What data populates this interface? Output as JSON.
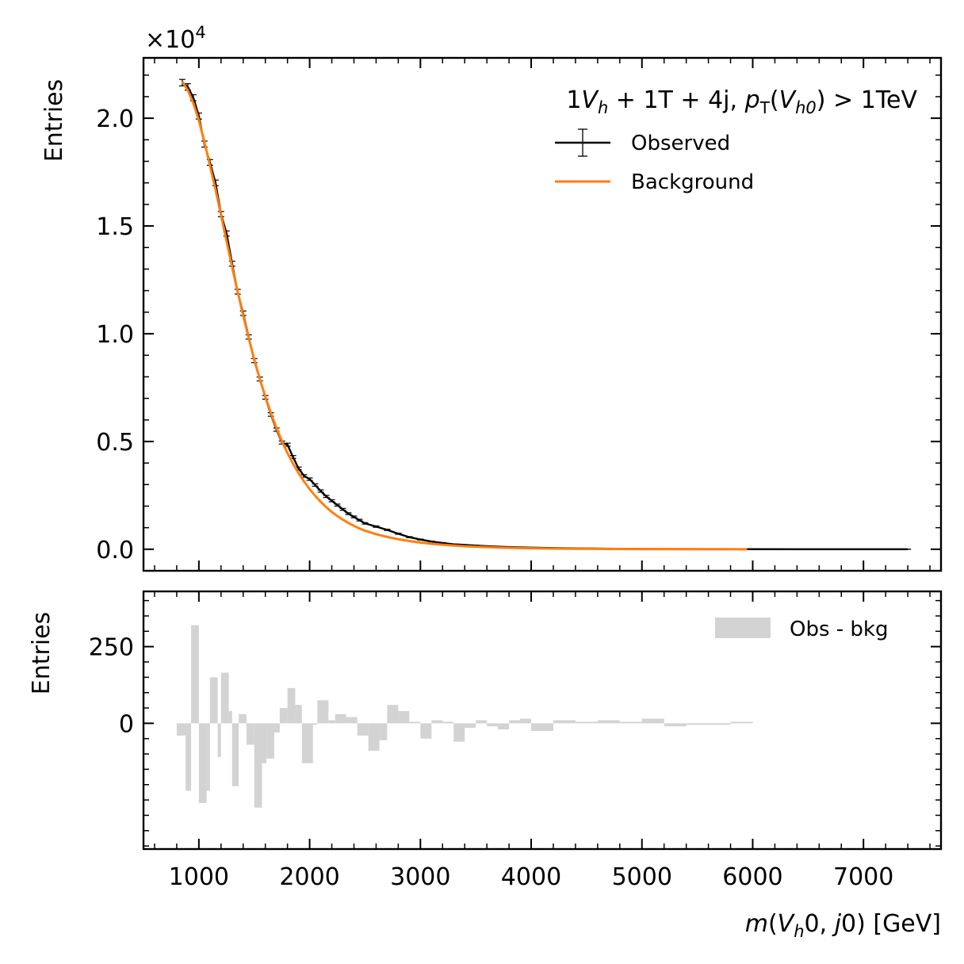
{
  "chart_data": [
    {
      "type": "line",
      "panel": "main",
      "annotation": {
        "lead": "1",
        "v": "V",
        "vsub": "h",
        "mid": " + 1T + 4j, ",
        "p": "p",
        "psub": "T",
        "paren_open": "(",
        "v2": "V",
        "v2sub": "h0",
        "tail": ") > 1TeV"
      },
      "ylabel": "Entries",
      "y_multiplier": "×10",
      "y_multiplier_exp": "4",
      "xlim": [
        500,
        7700
      ],
      "ylim": [
        -1000,
        22800
      ],
      "yticks": [
        0,
        5000,
        10000,
        15000,
        20000
      ],
      "ytick_labels": [
        "0.0",
        "0.5",
        "1.0",
        "1.5",
        "2.0"
      ],
      "xticks": [
        1000,
        2000,
        3000,
        4000,
        5000,
        6000,
        7000
      ],
      "legend_position": "upper-right",
      "series": [
        {
          "name": "Observed",
          "style": "errorbar",
          "color": "#000000",
          "x": [
            850,
            900,
            950,
            1000,
            1050,
            1100,
            1150,
            1200,
            1250,
            1300,
            1350,
            1400,
            1450,
            1500,
            1550,
            1600,
            1650,
            1700,
            1750,
            1800,
            1850,
            1900,
            1950,
            2000,
            2050,
            2100,
            2150,
            2200,
            2250,
            2300,
            2350,
            2400,
            2450,
            2500,
            2600,
            2700,
            2800,
            2900,
            3000,
            3100,
            3200,
            3300,
            3400,
            3500,
            3600,
            3700,
            3800,
            3900,
            4000,
            4200,
            4400,
            4600,
            4800,
            5000,
            5200,
            5400,
            5600,
            5800,
            6000,
            6400,
            6800,
            7200,
            7400
          ],
          "y": [
            21650,
            21450,
            20950,
            20100,
            18800,
            17950,
            17000,
            15550,
            14650,
            13250,
            11950,
            10950,
            9850,
            8750,
            7900,
            7050,
            6250,
            5550,
            4950,
            4850,
            4280,
            3750,
            3400,
            3250,
            2980,
            2700,
            2450,
            2250,
            2050,
            1850,
            1650,
            1500,
            1350,
            1200,
            1050,
            900,
            720,
            560,
            450,
            360,
            290,
            230,
            200,
            170,
            140,
            120,
            100,
            85,
            75,
            55,
            40,
            30,
            22,
            15,
            10,
            7,
            5,
            3,
            2,
            1,
            1,
            0,
            0
          ],
          "yerr": [
            150,
            150,
            140,
            140,
            140,
            130,
            130,
            120,
            120,
            115,
            110,
            105,
            100,
            95,
            90,
            85,
            80,
            75,
            70,
            70,
            65,
            62,
            58,
            57,
            55,
            52,
            50,
            48,
            45,
            43,
            41,
            39,
            37,
            35,
            33,
            30,
            27,
            24,
            21,
            19,
            17,
            15,
            14,
            13,
            12,
            11,
            10,
            9,
            9,
            7,
            6,
            5,
            5,
            4,
            3,
            3,
            2,
            2,
            1,
            1,
            1,
            1,
            1
          ]
        },
        {
          "name": "Background",
          "style": "line",
          "color": "#ff7f0e",
          "x": [
            850,
            900,
            950,
            1000,
            1050,
            1100,
            1150,
            1200,
            1250,
            1300,
            1350,
            1400,
            1450,
            1500,
            1550,
            1600,
            1650,
            1700,
            1750,
            1800,
            1850,
            1900,
            1950,
            2000,
            2050,
            2100,
            2150,
            2200,
            2250,
            2300,
            2350,
            2400,
            2450,
            2500,
            2600,
            2700,
            2800,
            2900,
            3000,
            3100,
            3200,
            3300,
            3400,
            3500,
            3600,
            3700,
            3800,
            3900,
            4000,
            4200,
            4400,
            4600,
            4800,
            5000,
            5200,
            5400,
            5600,
            5800,
            5950
          ],
          "y": [
            21700,
            21300,
            20700,
            19900,
            18900,
            17800,
            16700,
            15500,
            14300,
            13100,
            11950,
            10850,
            9800,
            8800,
            7900,
            7080,
            6320,
            5630,
            5010,
            4460,
            3970,
            3530,
            3140,
            2790,
            2480,
            2200,
            1950,
            1730,
            1540,
            1370,
            1220,
            1085,
            965,
            860,
            700,
            570,
            465,
            380,
            310,
            255,
            210,
            172,
            142,
            117,
            97,
            80,
            66,
            55,
            46,
            32,
            22,
            15,
            10,
            7,
            5,
            3,
            2,
            1,
            0
          ]
        }
      ]
    },
    {
      "type": "bar",
      "panel": "residual",
      "ylabel": "Entries",
      "xlabel_parts": {
        "m": "m",
        "open": "(",
        "v": "V",
        "vsub": "h",
        "zero": "0, ",
        "j": "j",
        "close": "0) [GeV]"
      },
      "xlim": [
        500,
        7700
      ],
      "ylim": [
        -410,
        430
      ],
      "yticks": [
        0,
        250
      ],
      "ytick_labels": [
        "0",
        "250"
      ],
      "xticks": [
        1000,
        2000,
        3000,
        4000,
        5000,
        6000,
        7000
      ],
      "xtick_labels": [
        "1000",
        "2000",
        "3000",
        "4000",
        "5000",
        "6000",
        "7000"
      ],
      "legend_position": "upper-right",
      "series": [
        {
          "name": "Obs - bkg",
          "color": "#d3d3d3",
          "bins": [
            [
              800,
              880,
              -40
            ],
            [
              880,
              930,
              -220
            ],
            [
              930,
              1000,
              320
            ],
            [
              1000,
              1070,
              -260
            ],
            [
              1070,
              1100,
              -220
            ],
            [
              1100,
              1170,
              150
            ],
            [
              1170,
              1200,
              -110
            ],
            [
              1200,
              1270,
              165
            ],
            [
              1270,
              1300,
              40
            ],
            [
              1300,
              1360,
              -205
            ],
            [
              1360,
              1430,
              30
            ],
            [
              1430,
              1500,
              -70
            ],
            [
              1500,
              1570,
              -275
            ],
            [
              1570,
              1610,
              -130
            ],
            [
              1610,
              1680,
              -115
            ],
            [
              1680,
              1730,
              -30
            ],
            [
              1730,
              1800,
              50
            ],
            [
              1800,
              1870,
              115
            ],
            [
              1870,
              1930,
              60
            ],
            [
              1930,
              2030,
              -130
            ],
            [
              2030,
              2070,
              -5
            ],
            [
              2070,
              2170,
              75
            ],
            [
              2170,
              2230,
              10
            ],
            [
              2230,
              2330,
              30
            ],
            [
              2330,
              2430,
              20
            ],
            [
              2430,
              2530,
              -40
            ],
            [
              2530,
              2630,
              -90
            ],
            [
              2630,
              2700,
              -55
            ],
            [
              2700,
              2800,
              60
            ],
            [
              2800,
              2900,
              40
            ],
            [
              2900,
              3000,
              5
            ],
            [
              3000,
              3100,
              -50
            ],
            [
              3100,
              3200,
              10
            ],
            [
              3200,
              3300,
              5
            ],
            [
              3300,
              3400,
              -60
            ],
            [
              3400,
              3500,
              -15
            ],
            [
              3500,
              3600,
              10
            ],
            [
              3600,
              3700,
              -10
            ],
            [
              3700,
              3800,
              -20
            ],
            [
              3800,
              3900,
              10
            ],
            [
              3900,
              4000,
              15
            ],
            [
              4000,
              4200,
              -25
            ],
            [
              4200,
              4400,
              10
            ],
            [
              4400,
              4600,
              5
            ],
            [
              4600,
              4800,
              10
            ],
            [
              4800,
              5000,
              5
            ],
            [
              5000,
              5200,
              15
            ],
            [
              5200,
              5400,
              -10
            ],
            [
              5400,
              5600,
              -5
            ],
            [
              5600,
              5800,
              -5
            ],
            [
              5800,
              6000,
              5
            ]
          ]
        }
      ]
    }
  ]
}
